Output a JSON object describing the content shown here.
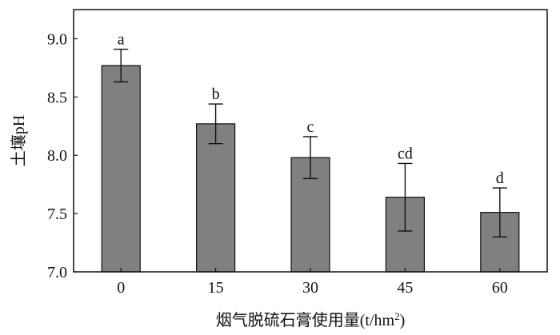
{
  "chart_data": {
    "type": "bar",
    "title": "",
    "xlabel": "烟气脱硫石膏使用量(t/hm²)",
    "xlabel_main": "烟气脱硫石膏使用量(t/hm",
    "xlabel_sup": "2",
    "xlabel_close": ")",
    "ylabel": "土壤pH",
    "categories": [
      "0",
      "15",
      "30",
      "45",
      "60"
    ],
    "values": [
      8.77,
      8.27,
      7.98,
      7.64,
      7.51
    ],
    "error_upper": [
      8.91,
      8.44,
      8.16,
      7.93,
      7.72
    ],
    "error_lower": [
      8.63,
      8.1,
      7.8,
      7.35,
      7.3
    ],
    "significance": [
      "a",
      "b",
      "c",
      "cd",
      "d"
    ],
    "ylim": [
      7.0,
      9.25
    ],
    "yticks": [
      7.0,
      7.5,
      8.0,
      8.5,
      9.0
    ],
    "ytick_labels": [
      "7.0",
      "7.5",
      "8.0",
      "8.5",
      "9.0"
    ],
    "grid": false,
    "bar_color": "#808080",
    "edge_color": "#111111"
  }
}
